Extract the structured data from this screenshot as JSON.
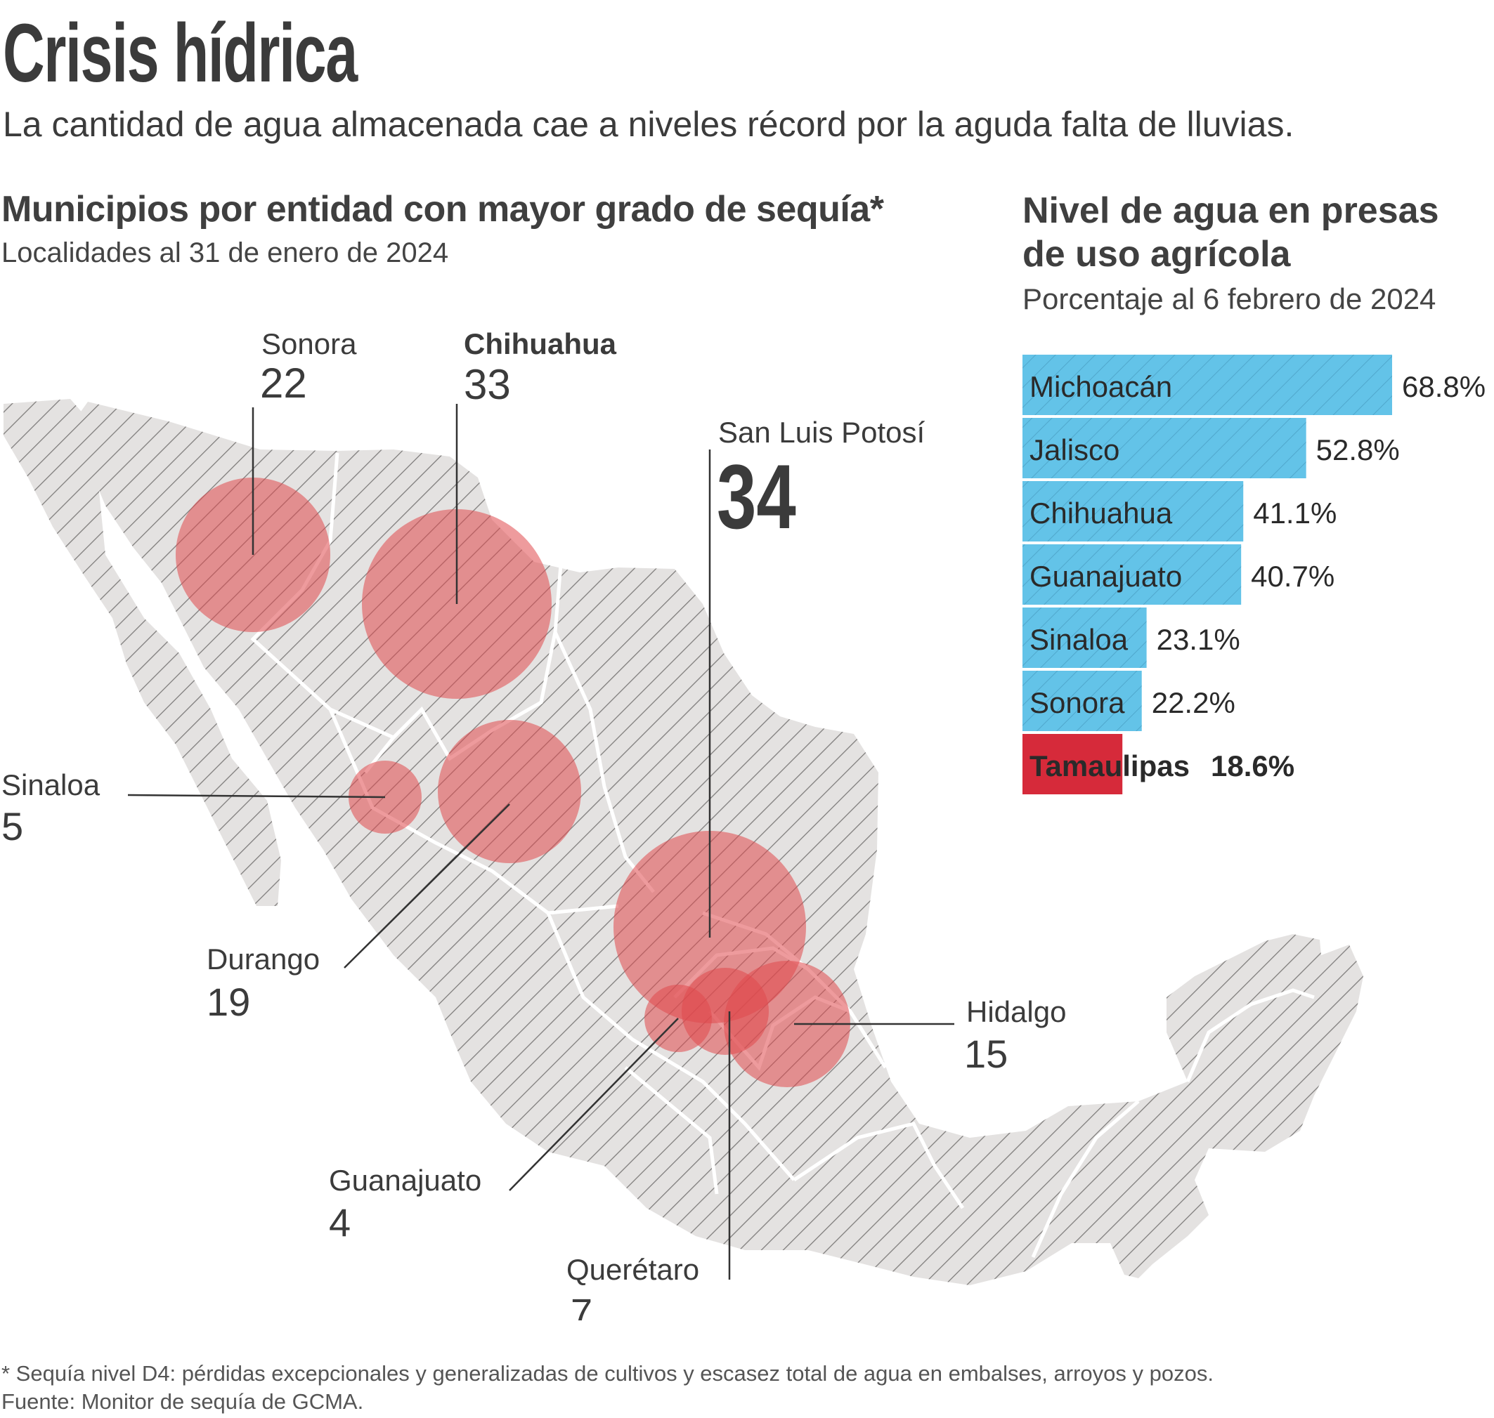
{
  "header": {
    "title": "Crisis hídrica",
    "subtitle": "La cantidad de agua almacenada cae a niveles récord por la aguda falta de lluvias."
  },
  "map_section": {
    "title": "Municipios por entidad con mayor grado de sequía*",
    "subtitle": "Localidades al 31 de enero de 2024"
  },
  "bars_section": {
    "title_line1": "Nivel de agua en presas",
    "title_line2": "de uso agrícola",
    "subtitle": "Porcentaje al 6 febrero de 2024"
  },
  "footer": {
    "note": "* Sequía nivel D4: pérdidas excepcionales y generalizadas de cultivos y escasez total de agua en embalses, arroyos y pozos.",
    "source": "Fuente: Monitor de sequía de GCMA."
  },
  "colors": {
    "bubble": "#e0484c",
    "map_fill": "#e4e2e1",
    "bar_blue": "#63c3e8",
    "bar_red": "#d62a3a",
    "text": "#3b3b3b"
  },
  "chart_data": [
    {
      "type": "scatter",
      "title": "Municipios por entidad con mayor grado de sequía*",
      "subtitle": "Localidades al 31 de enero de 2024",
      "unit": "municipios",
      "points": [
        {
          "state": "Sonora",
          "value": 22
        },
        {
          "state": "Chihuahua",
          "value": 33
        },
        {
          "state": "San Luis Potosí",
          "value": 34
        },
        {
          "state": "Sinaloa",
          "value": 5
        },
        {
          "state": "Durango",
          "value": 19
        },
        {
          "state": "Hidalgo",
          "value": 15
        },
        {
          "state": "Guanajuato",
          "value": 4
        },
        {
          "state": "Querétaro",
          "value": 7
        }
      ]
    },
    {
      "type": "bar",
      "orientation": "horizontal",
      "title": "Nivel de agua en presas de uso agrícola",
      "subtitle": "Porcentaje al 6 febrero de 2024",
      "xlim": [
        0,
        100
      ],
      "categories": [
        "Michoacán",
        "Jalisco",
        "Chihuahua",
        "Guanajuato",
        "Sinaloa",
        "Sonora",
        "Tamaulipas"
      ],
      "values": [
        68.8,
        52.8,
        41.1,
        40.7,
        23.1,
        22.2,
        18.6
      ],
      "value_labels": [
        "68.8%",
        "52.8%",
        "41.1%",
        "40.7%",
        "23.1%",
        "22.2%",
        "18.6%"
      ],
      "highlight": "Tamaulipas"
    }
  ]
}
